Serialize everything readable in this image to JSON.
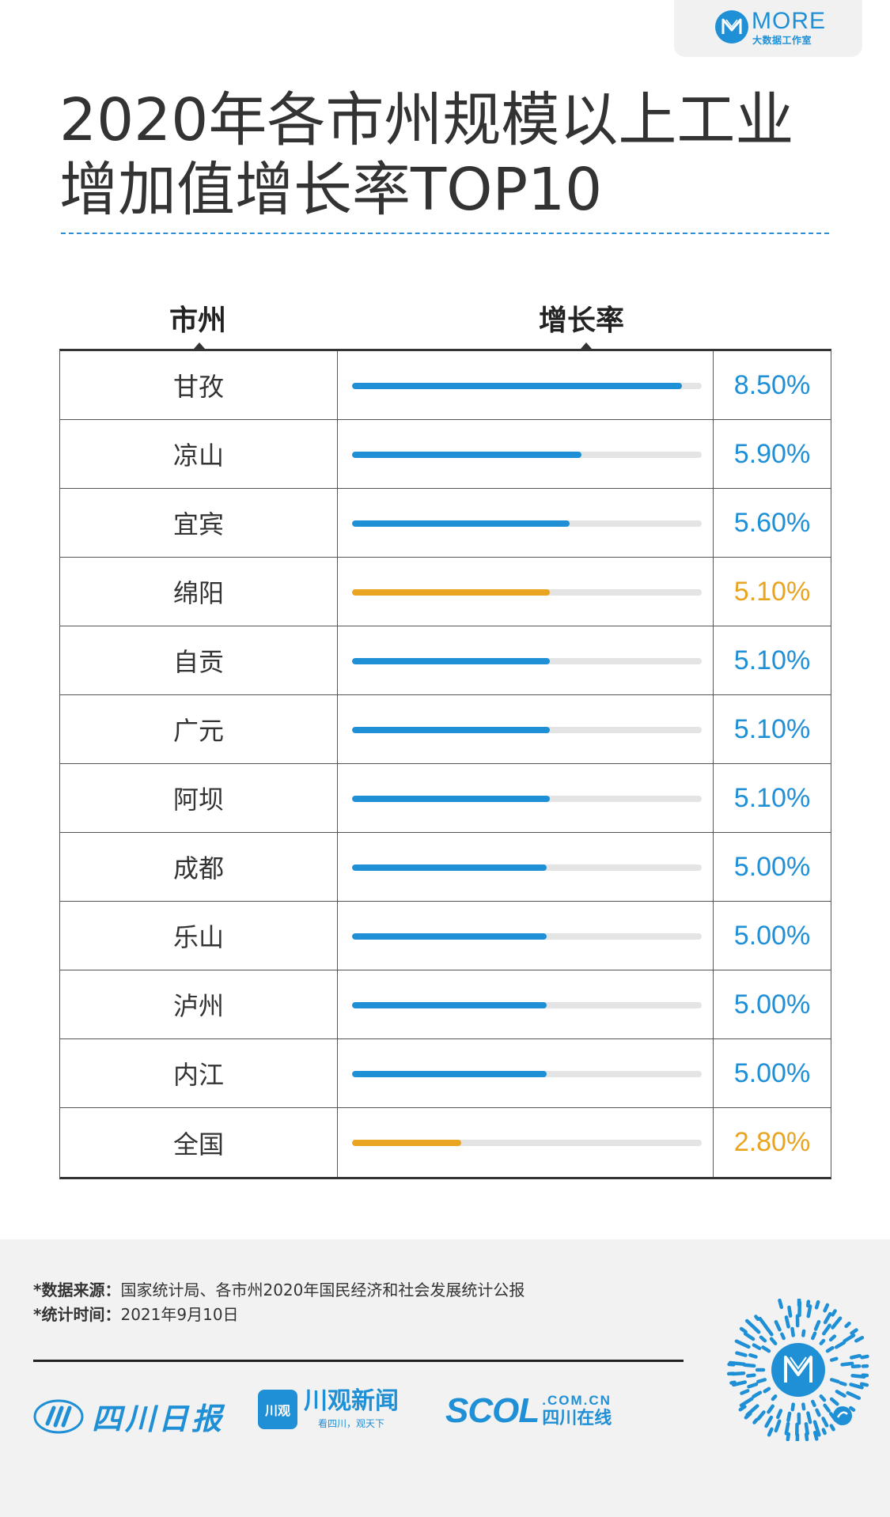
{
  "brand": {
    "name": "MORE",
    "subtitle": "大数据工作室",
    "color": "#1f8fd6"
  },
  "title": {
    "line1": "2020年各市州规模以上工业",
    "line2": "增加值增长率TOP10"
  },
  "chart_data": {
    "type": "bar",
    "title": "2020年各市州规模以上工业增加值增长率TOP10",
    "columns": [
      "市州",
      "增长率"
    ],
    "categories": [
      "甘孜",
      "凉山",
      "宜宾",
      "绵阳",
      "自贡",
      "广元",
      "阿坝",
      "成都",
      "乐山",
      "泸州",
      "内江",
      "全国"
    ],
    "values": [
      8.5,
      5.9,
      5.6,
      5.1,
      5.1,
      5.1,
      5.1,
      5.0,
      5.0,
      5.0,
      5.0,
      2.8
    ],
    "value_labels": [
      "8.50%",
      "5.90%",
      "5.60%",
      "5.10%",
      "5.10%",
      "5.10%",
      "5.10%",
      "5.00%",
      "5.00%",
      "5.00%",
      "5.00%",
      "2.80%"
    ],
    "highlighted": [
      "绵阳",
      "全国"
    ],
    "bar_color": "#1f8fd6",
    "highlight_color": "#e9a521",
    "track_color": "#e4e4e4",
    "xlim": [
      0,
      9
    ],
    "grid": false,
    "legend": "none"
  },
  "footer": {
    "source_label": "*数据来源：",
    "source_text": "国家统计局、各市州2020年国民经济和社会发展统计公报",
    "time_label": "*统计时间：",
    "time_text": "2021年9月10日",
    "logos": {
      "sichuan_daily": "四川日报",
      "chuanguan_badge": "川观",
      "chuanguan_name": "川观新闻",
      "chuanguan_slogan": "看四川，观天下",
      "scol_name": "SCOL",
      "scol_domain": ".COM.CN",
      "scol_sub": "四川在线"
    }
  }
}
